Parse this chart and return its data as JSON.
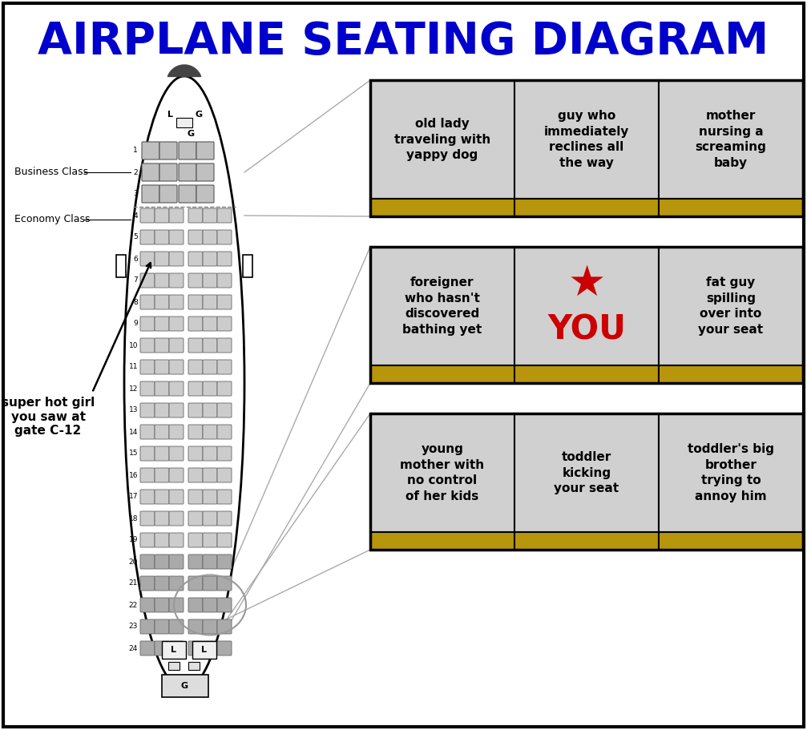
{
  "title": "AIRPLANE SEATING DIAGRAM",
  "title_color": "#0000CC",
  "title_fontsize": 40,
  "bg_color": "#FFFFFF",
  "seating_rows": [
    {
      "label": "1",
      "class": "business"
    },
    {
      "label": "2",
      "class": "business"
    },
    {
      "label": "3",
      "class": "business"
    },
    {
      "label": "4",
      "class": "economy"
    },
    {
      "label": "5",
      "class": "economy"
    },
    {
      "label": "6",
      "class": "economy"
    },
    {
      "label": "7",
      "class": "economy"
    },
    {
      "label": "8",
      "class": "economy"
    },
    {
      "label": "9",
      "class": "economy"
    },
    {
      "label": "10",
      "class": "economy"
    },
    {
      "label": "11",
      "class": "economy"
    },
    {
      "label": "12",
      "class": "economy"
    },
    {
      "label": "13",
      "class": "economy"
    },
    {
      "label": "14",
      "class": "economy"
    },
    {
      "label": "15",
      "class": "economy"
    },
    {
      "label": "16",
      "class": "economy"
    },
    {
      "label": "17",
      "class": "economy"
    },
    {
      "label": "18",
      "class": "economy"
    },
    {
      "label": "19",
      "class": "economy"
    },
    {
      "label": "20",
      "class": "economy_back"
    },
    {
      "label": "21",
      "class": "economy_back"
    },
    {
      "label": "22",
      "class": "economy_back"
    },
    {
      "label": "23",
      "class": "economy_back"
    },
    {
      "label": "24",
      "class": "economy_back"
    }
  ],
  "seat_color_business": "#C0C0C0",
  "seat_color_economy": "#CCCCCC",
  "seat_color_economy_back": "#AAAAAA",
  "grid_cells": [
    {
      "row": 0,
      "col": 0,
      "text": "old lady\ntraveling with\nyappy dog",
      "is_you": false
    },
    {
      "row": 0,
      "col": 1,
      "text": "guy who\nimmediately\nreclines all\nthe way",
      "is_you": false
    },
    {
      "row": 0,
      "col": 2,
      "text": "mother\nnursing a\nscreaming\nbaby",
      "is_you": false
    },
    {
      "row": 1,
      "col": 0,
      "text": "foreigner\nwho hasn't\ndiscovered\nbathing yet",
      "is_you": false
    },
    {
      "row": 1,
      "col": 1,
      "text": "YOU",
      "is_you": true
    },
    {
      "row": 1,
      "col": 2,
      "text": "fat guy\nspilling\nover into\nyour seat",
      "is_you": false
    },
    {
      "row": 2,
      "col": 0,
      "text": "young\nmother with\nno control\nof her kids",
      "is_you": false
    },
    {
      "row": 2,
      "col": 1,
      "text": "toddler\nkicking\nyour seat",
      "is_you": false
    },
    {
      "row": 2,
      "col": 2,
      "text": "toddler's big\nbrother\ntrying to\nannoy him",
      "is_you": false
    }
  ],
  "cell_bg": "#D0D0D0",
  "cell_border": "#000000",
  "cell_footer_color": "#B8960C",
  "cell_text_color": "#000000",
  "you_text_color": "#CC0000",
  "business_class_label": "Business Class",
  "economy_class_label": "Economy Class",
  "hot_girl_label": "super hot girl\nyou saw at\ngate C-12"
}
